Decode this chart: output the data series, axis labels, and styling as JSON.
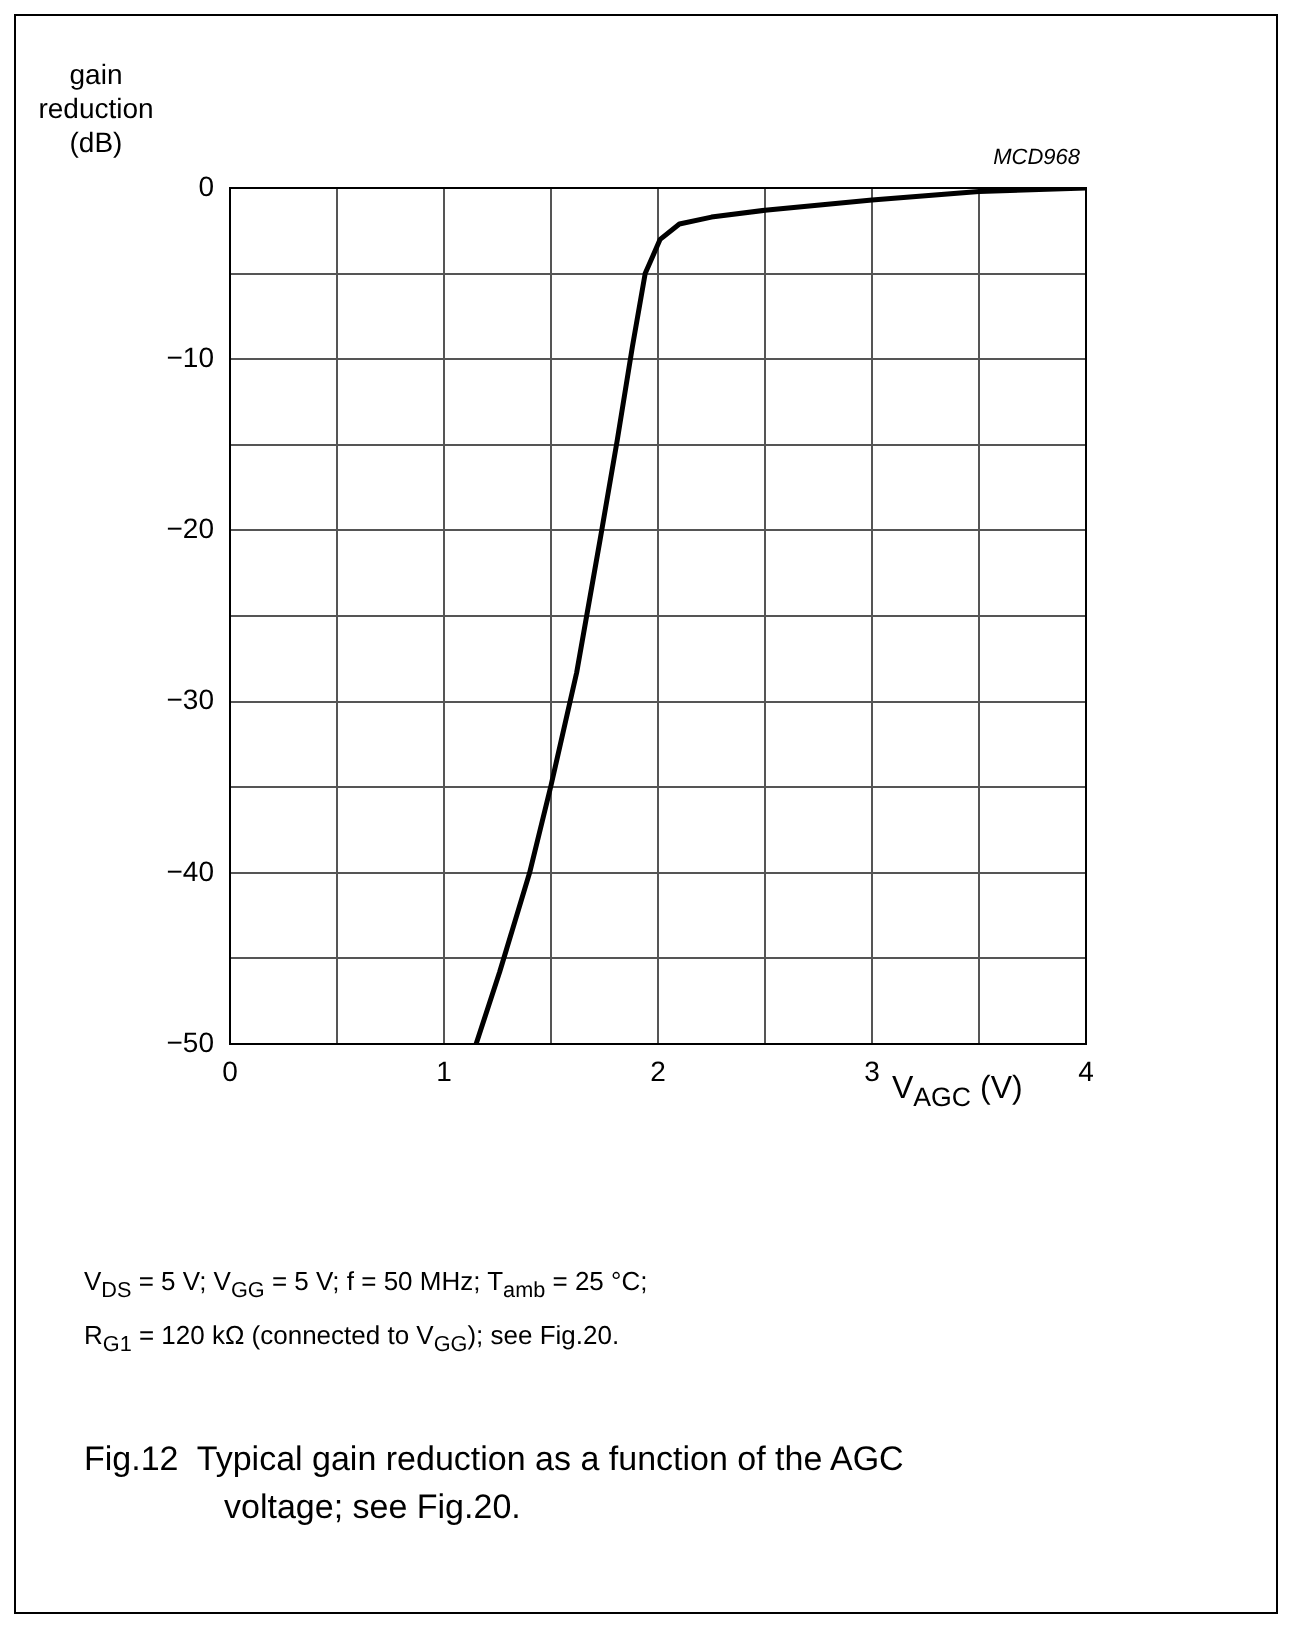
{
  "chart_data": {
    "type": "line",
    "title": "Fig.12  Typical gain reduction as a function of the AGC voltage; see Fig.20.",
    "xlabel": "V$_{AGC}$ (V)",
    "ylabel": "gain reduction (dB)",
    "annotations": [
      "MCD968",
      "V$_{DS}$ = 5 V; V$_{GG}$ = 5 V; f = 50 MHz; T$_{amb}$ = 25 °C;",
      "R$_{G1}$ = 120 kΩ (connected to V$_{GG}$); see Fig.20."
    ],
    "xlim": [
      0,
      4
    ],
    "xticks": [
      0,
      {
        "value": 0.5,
        "label": null
      },
      1,
      {
        "value": 1.5,
        "label": null
      },
      2,
      {
        "value": 2.5,
        "label": null
      },
      3,
      {
        "value": 3.5,
        "label": null
      },
      4
    ],
    "ylim": [
      -50,
      0
    ],
    "yticks": [
      {
        "value": -50,
        "label": "−50"
      },
      {
        "value": -45,
        "label": null
      },
      {
        "value": -40,
        "label": "−40"
      },
      {
        "value": -35,
        "label": null
      },
      {
        "value": -30,
        "label": "−30"
      },
      {
        "value": -25,
        "label": null
      },
      {
        "value": -20,
        "label": "−20"
      },
      {
        "value": -15,
        "label": null
      },
      {
        "value": -10,
        "label": "−10"
      },
      {
        "value": -5,
        "label": null
      },
      0
    ],
    "grid": true,
    "legend": false,
    "marker": "none",
    "line_style": "solid",
    "series": [
      {
        "color": "#000000",
        "x": [
          1.15,
          1.26,
          1.4,
          1.5,
          1.62,
          1.73,
          1.81,
          1.88,
          1.94,
          2.01,
          2.1,
          2.25,
          2.5,
          3.0,
          3.5,
          4.0
        ],
        "values": [
          -50,
          -45.8,
          -40,
          -34.9,
          -28.3,
          -20.5,
          -14.7,
          -9.3,
          -5,
          -3,
          -2.1,
          -1.7,
          -1.3,
          -0.7,
          -0.2,
          0
        ]
      }
    ]
  }
}
